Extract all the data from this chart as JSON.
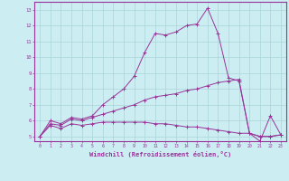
{
  "xlabel": "Windchill (Refroidissement éolien,°C)",
  "bg_color": "#cceef2",
  "grid_color": "#aad4d8",
  "line_color": "#993399",
  "xlim": [
    -0.5,
    23.5
  ],
  "ylim": [
    4.7,
    13.5
  ],
  "xticks": [
    0,
    1,
    2,
    3,
    4,
    5,
    6,
    7,
    8,
    9,
    10,
    11,
    12,
    13,
    14,
    15,
    16,
    17,
    18,
    19,
    20,
    21,
    22,
    23
  ],
  "yticks": [
    5,
    6,
    7,
    8,
    9,
    10,
    11,
    12,
    13
  ],
  "series1_x": [
    0,
    1,
    2,
    3,
    4,
    5,
    6,
    7,
    8,
    9,
    10,
    11,
    12,
    13,
    14,
    15,
    16,
    17,
    18,
    19,
    20,
    21,
    22,
    23
  ],
  "series1_y": [
    5.0,
    6.0,
    5.8,
    6.2,
    6.1,
    6.3,
    7.0,
    7.5,
    8.0,
    8.8,
    10.3,
    11.5,
    11.4,
    11.6,
    12.0,
    12.1,
    13.1,
    11.5,
    8.7,
    8.5,
    5.2,
    4.7,
    6.3,
    5.1
  ],
  "series2_x": [
    0,
    1,
    2,
    3,
    4,
    5,
    6,
    7,
    8,
    9,
    10,
    11,
    12,
    13,
    14,
    15,
    16,
    17,
    18,
    19,
    20,
    21,
    22,
    23
  ],
  "series2_y": [
    5.0,
    5.8,
    5.7,
    6.1,
    6.0,
    6.2,
    6.4,
    6.6,
    6.8,
    7.0,
    7.3,
    7.5,
    7.6,
    7.7,
    7.9,
    8.0,
    8.2,
    8.4,
    8.5,
    8.6,
    5.2,
    5.0,
    5.0,
    5.1
  ],
  "series3_x": [
    0,
    1,
    2,
    3,
    4,
    5,
    6,
    7,
    8,
    9,
    10,
    11,
    12,
    13,
    14,
    15,
    16,
    17,
    18,
    19,
    20,
    21,
    22,
    23
  ],
  "series3_y": [
    5.0,
    5.7,
    5.5,
    5.8,
    5.7,
    5.8,
    5.9,
    5.9,
    5.9,
    5.9,
    5.9,
    5.8,
    5.8,
    5.7,
    5.6,
    5.6,
    5.5,
    5.4,
    5.3,
    5.2,
    5.2,
    5.0,
    5.0,
    5.1
  ]
}
